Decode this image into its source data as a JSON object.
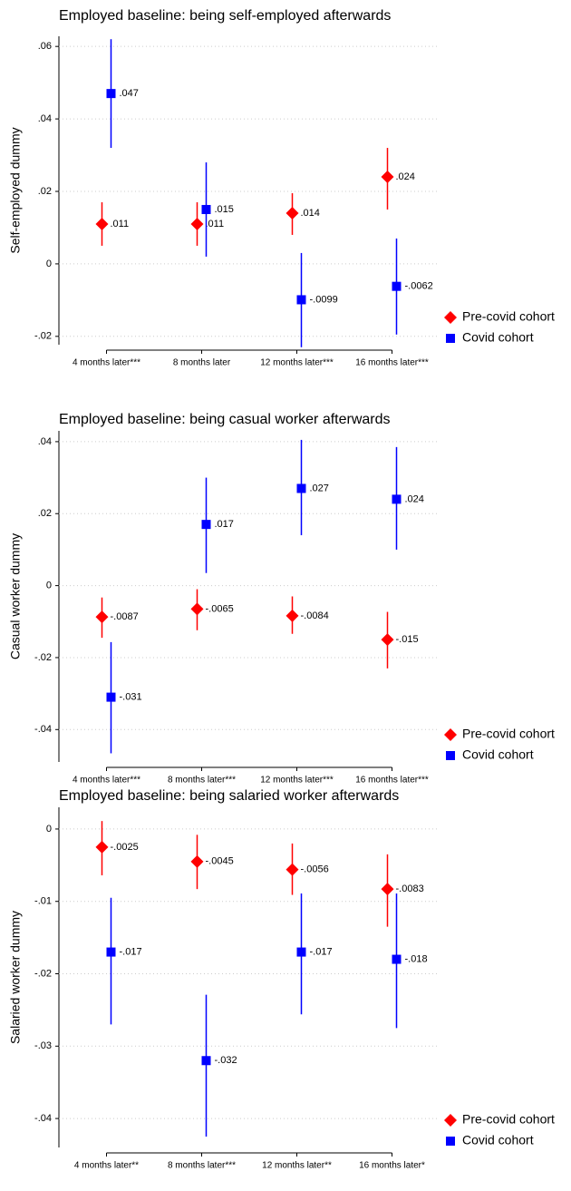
{
  "chart_data": [
    {
      "type": "errorbar",
      "title": "Employed baseline: being self-employed afterwards",
      "y_label": "Self-employed dummy",
      "categories": [
        "4 months later***",
        "8 months later",
        "12 months later***",
        "16 months later***"
      ],
      "ylim": [
        -0.0223,
        0.0628
      ],
      "yticks": [
        {
          "value": 0.06,
          "label": ".06"
        },
        {
          "value": 0.04,
          "label": ".04"
        },
        {
          "value": 0.02,
          "label": ".02"
        },
        0,
        {
          "value": -0.02,
          "label": "-.02"
        }
      ],
      "grid": true,
      "legend": "right",
      "series": [
        {
          "name": "Pre-covid cohort",
          "color": "#ff0000",
          "marker": "diamond",
          "values": [
            0.011,
            0.011,
            0.014,
            0.024
          ],
          "value_labels": [
            ".011",
            ".011",
            ".014",
            ".024"
          ],
          "lower": [
            0.005,
            0.005,
            0.008,
            0.015
          ],
          "upper": [
            0.017,
            0.017,
            0.0195,
            0.032
          ]
        },
        {
          "name": "Covid cohort",
          "color": "#0000ff",
          "marker": "square",
          "values": [
            0.047,
            0.015,
            -0.0099,
            -0.0062
          ],
          "value_labels": [
            ".047",
            ".015",
            "-.0099",
            "-.0062"
          ],
          "lower": [
            0.032,
            0.002,
            -0.023,
            -0.0195
          ],
          "upper": [
            0.062,
            0.028,
            0.003,
            0.007
          ]
        }
      ]
    },
    {
      "type": "errorbar",
      "title": "Employed baseline: being casual worker afterwards",
      "y_label": "Casual worker dummy",
      "categories": [
        "4 months later***",
        "8 months later***",
        "12 months later***",
        "16 months later***"
      ],
      "ylim": [
        -0.049,
        0.043
      ],
      "yticks": [
        {
          "value": 0.04,
          "label": ".04"
        },
        {
          "value": 0.02,
          "label": ".02"
        },
        0,
        {
          "value": -0.02,
          "label": "-.02"
        },
        {
          "value": -0.04,
          "label": "-.04"
        }
      ],
      "grid": true,
      "legend": "right",
      "series": [
        {
          "name": "Pre-covid cohort",
          "color": "#ff0000",
          "marker": "diamond",
          "values": [
            -0.0087,
            -0.0065,
            -0.0084,
            -0.015
          ],
          "value_labels": [
            "-.0087",
            "-.0065",
            "-.0084",
            "-.015"
          ],
          "lower": [
            -0.0145,
            -0.0124,
            -0.0134,
            -0.023
          ],
          "upper": [
            -0.0033,
            -0.001,
            -0.003,
            -0.0073
          ]
        },
        {
          "name": "Covid cohort",
          "color": "#0000ff",
          "marker": "square",
          "values": [
            -0.031,
            0.017,
            0.027,
            0.024
          ],
          "value_labels": [
            "-.031",
            ".017",
            ".027",
            ".024"
          ],
          "lower": [
            -0.0466,
            0.0035,
            0.014,
            0.01
          ],
          "upper": [
            -0.0157,
            0.03,
            0.0405,
            0.0385
          ]
        }
      ]
    },
    {
      "type": "errorbar",
      "title": "Employed baseline: being salaried worker afterwards",
      "y_label": "Salaried worker dummy",
      "categories": [
        "4 months later**",
        "8 months later***",
        "12 months later**",
        "16 months later*"
      ],
      "ylim": [
        -0.044,
        0.003
      ],
      "yticks": [
        0,
        {
          "value": -0.01,
          "label": "-.01"
        },
        {
          "value": -0.02,
          "label": "-.02"
        },
        {
          "value": -0.03,
          "label": "-.03"
        },
        {
          "value": -0.04,
          "label": "-.04"
        }
      ],
      "grid": true,
      "legend": "right",
      "series": [
        {
          "name": "Pre-covid cohort",
          "color": "#ff0000",
          "marker": "diamond",
          "values": [
            -0.0025,
            -0.0045,
            -0.0056,
            -0.0083
          ],
          "value_labels": [
            "-.0025",
            "-.0045",
            "-.0056",
            "-.0083"
          ],
          "lower": [
            -0.0064,
            -0.0083,
            -0.0091,
            -0.0135
          ],
          "upper": [
            0.0011,
            -0.0008,
            -0.002,
            -0.0035
          ]
        },
        {
          "name": "Covid cohort",
          "color": "#0000ff",
          "marker": "square",
          "values": [
            -0.017,
            -0.032,
            -0.017,
            -0.018
          ],
          "value_labels": [
            "-.017",
            "-.032",
            "-.017",
            "-.018"
          ],
          "lower": [
            -0.027,
            -0.0425,
            -0.0256,
            -0.0275
          ],
          "upper": [
            -0.0095,
            -0.0229,
            -0.0089,
            -0.0089
          ]
        }
      ]
    }
  ]
}
